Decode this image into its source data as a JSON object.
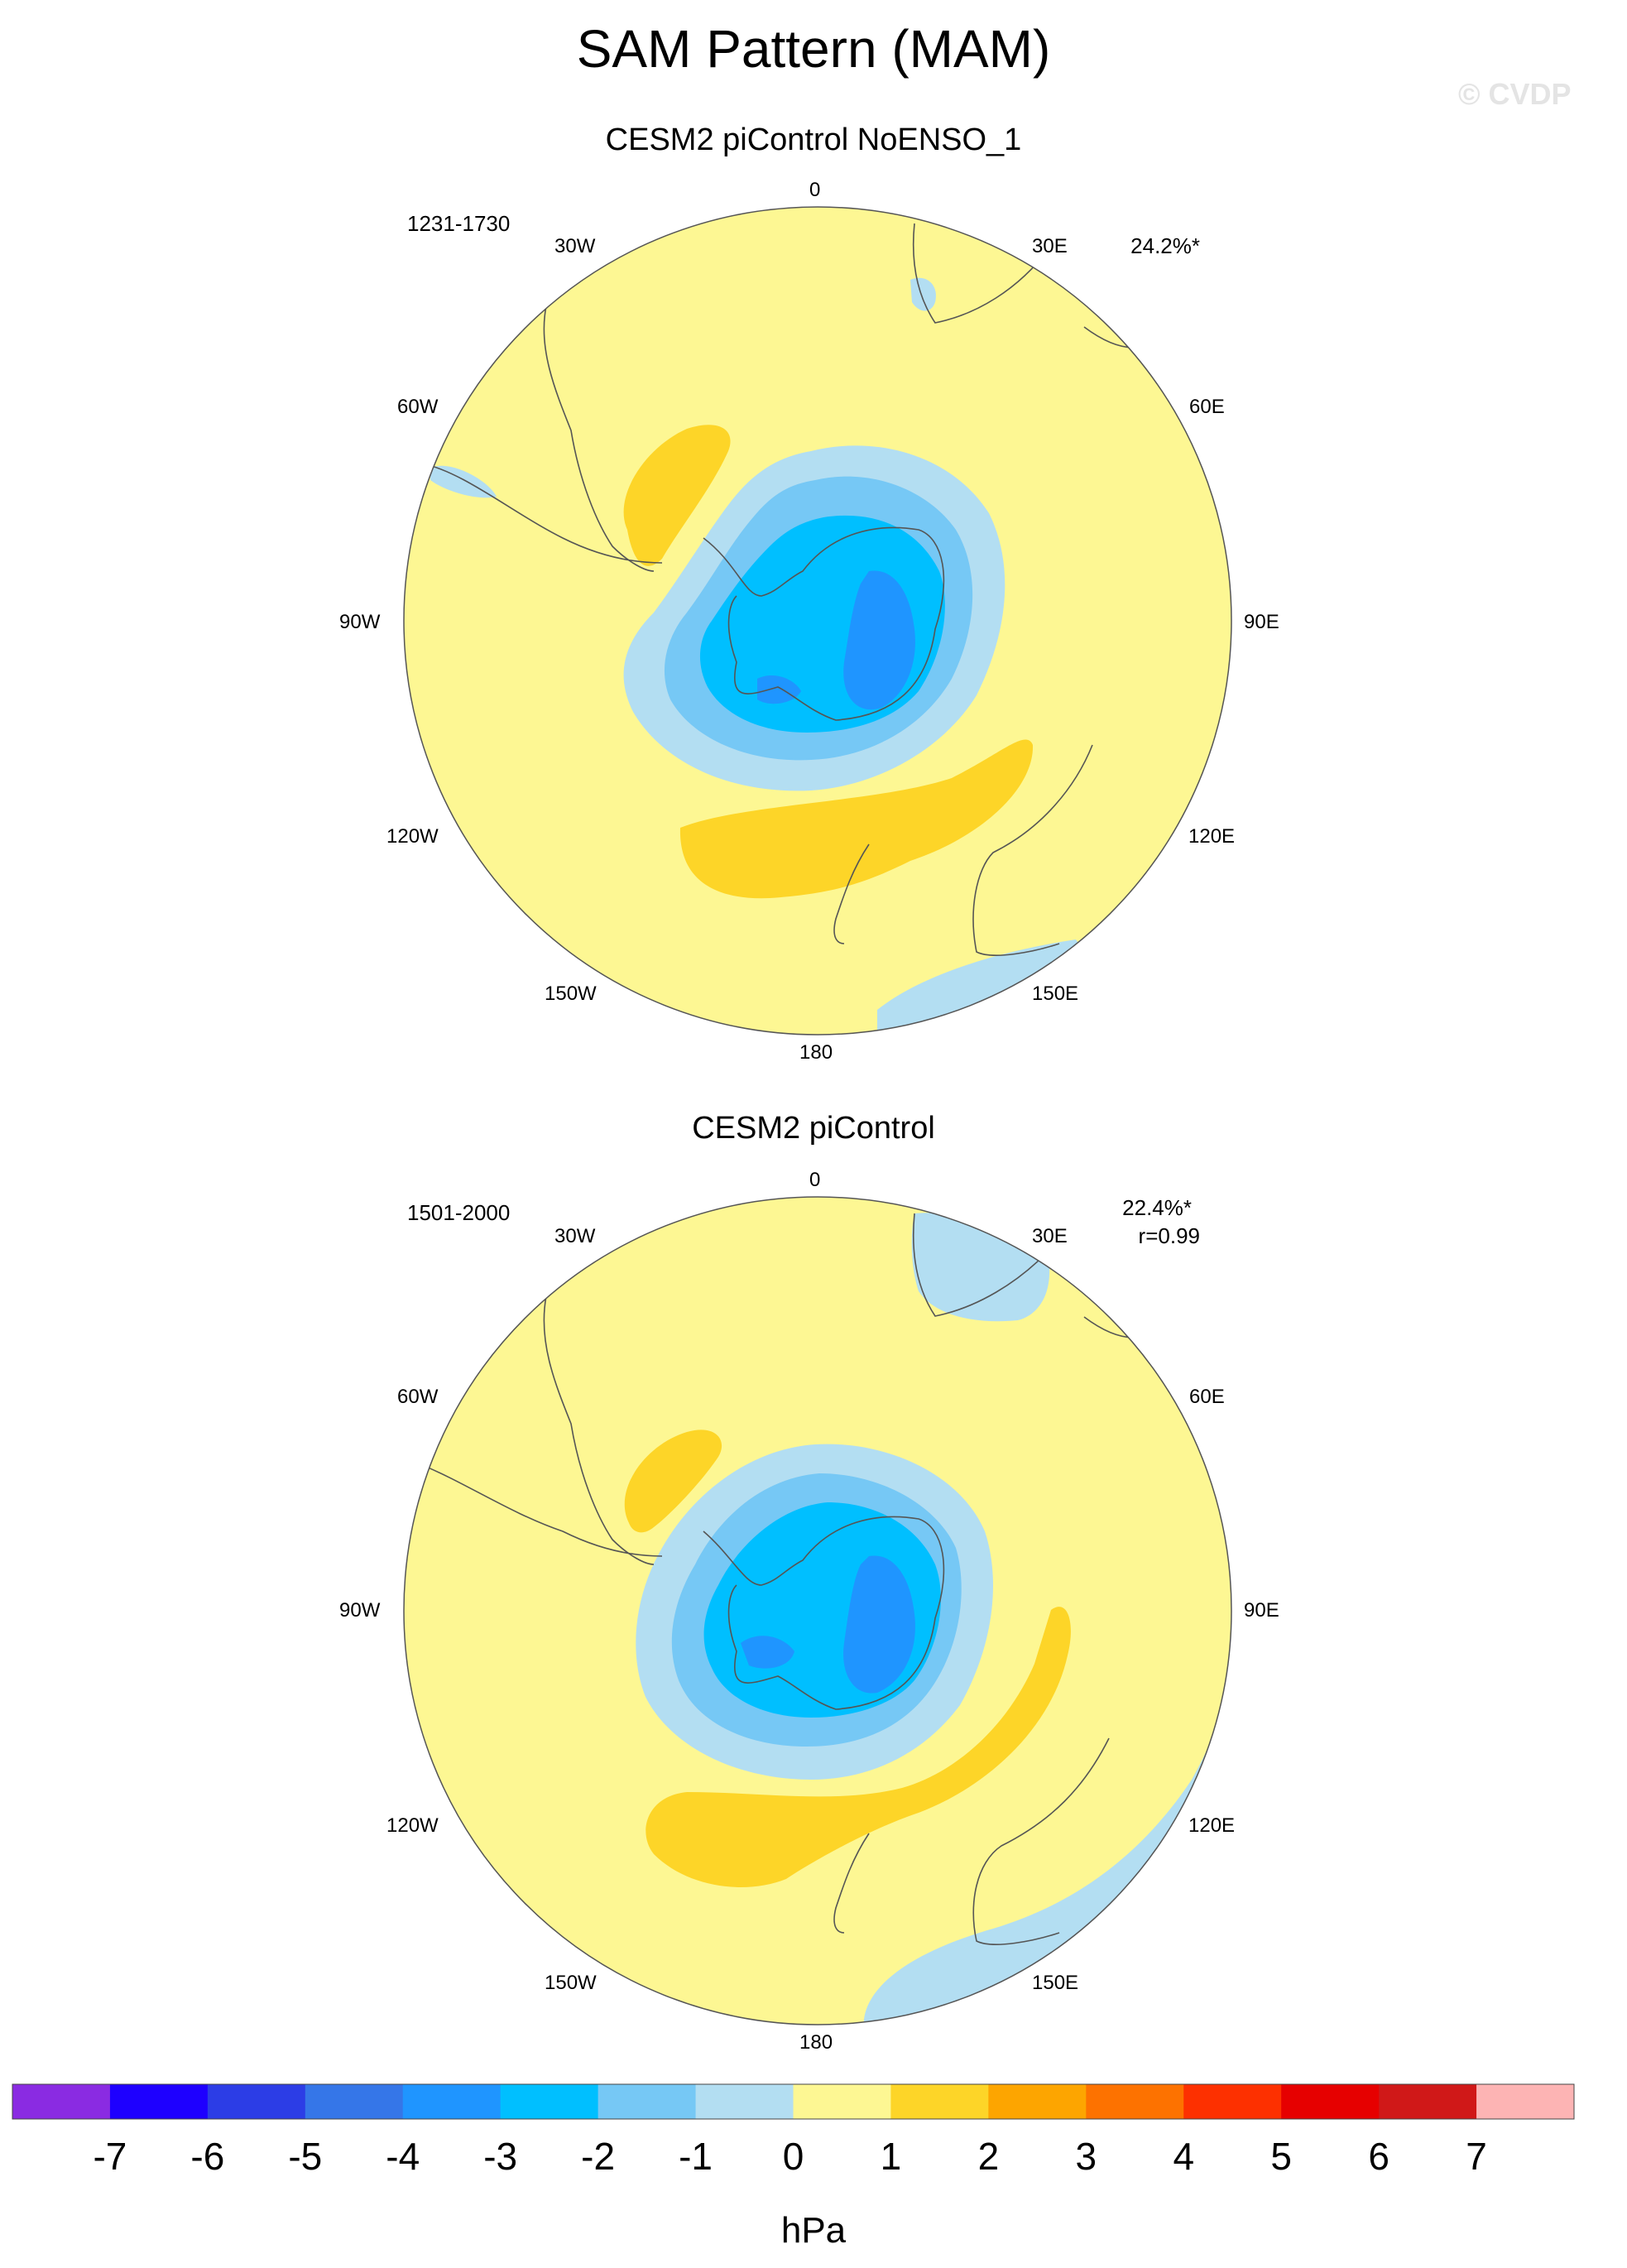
{
  "title": "SAM Pattern (MAM)",
  "watermark": "© CVDP",
  "panels": [
    {
      "title": "CESM2 piControl NoENSO_1",
      "years": "1231-1730",
      "stat": "24.2%*",
      "stat2": "",
      "lon_labels": {
        "n": "0",
        "ne30": "30E",
        "ne60": "60E",
        "e": "90E",
        "se120": "120E",
        "se150": "150E",
        "s": "180",
        "sw150": "150W",
        "sw120": "120W",
        "w": "90W",
        "nw60": "60W",
        "nw30": "30W"
      }
    },
    {
      "title": "CESM2 piControl",
      "years": "1501-2000",
      "stat": "22.4%*",
      "stat2": "r=0.99",
      "lon_labels": {
        "n": "0",
        "ne30": "30E",
        "ne60": "60E",
        "e": "90E",
        "se120": "120E",
        "se150": "150E",
        "s": "180",
        "sw150": "150W",
        "sw120": "120W",
        "w": "90W",
        "nw60": "60W",
        "nw30": "30W"
      }
    }
  ],
  "colorbar": {
    "unit": "hPa",
    "ticks": [
      "-7",
      "-6",
      "-5",
      "-4",
      "-3",
      "-2",
      "-1",
      "0",
      "1",
      "2",
      "3",
      "4",
      "5",
      "6",
      "7"
    ],
    "colors": [
      "#8a2be2",
      "#1e00ff",
      "#2c3de6",
      "#3576e8",
      "#1f95ff",
      "#00bfff",
      "#76c8f5",
      "#b3def2",
      "#fdf793",
      "#fdd528",
      "#fda500",
      "#fd7200",
      "#fd3000",
      "#e60000",
      "#d01818",
      "#fdb4b4"
    ]
  },
  "fill_colors": {
    "pos1": "#fdf793",
    "pos2": "#fdd528",
    "neg1": "#b3def2",
    "neg2": "#76c8f5",
    "neg3": "#00bfff",
    "neg4": "#1f95ff",
    "land": "#555555"
  }
}
